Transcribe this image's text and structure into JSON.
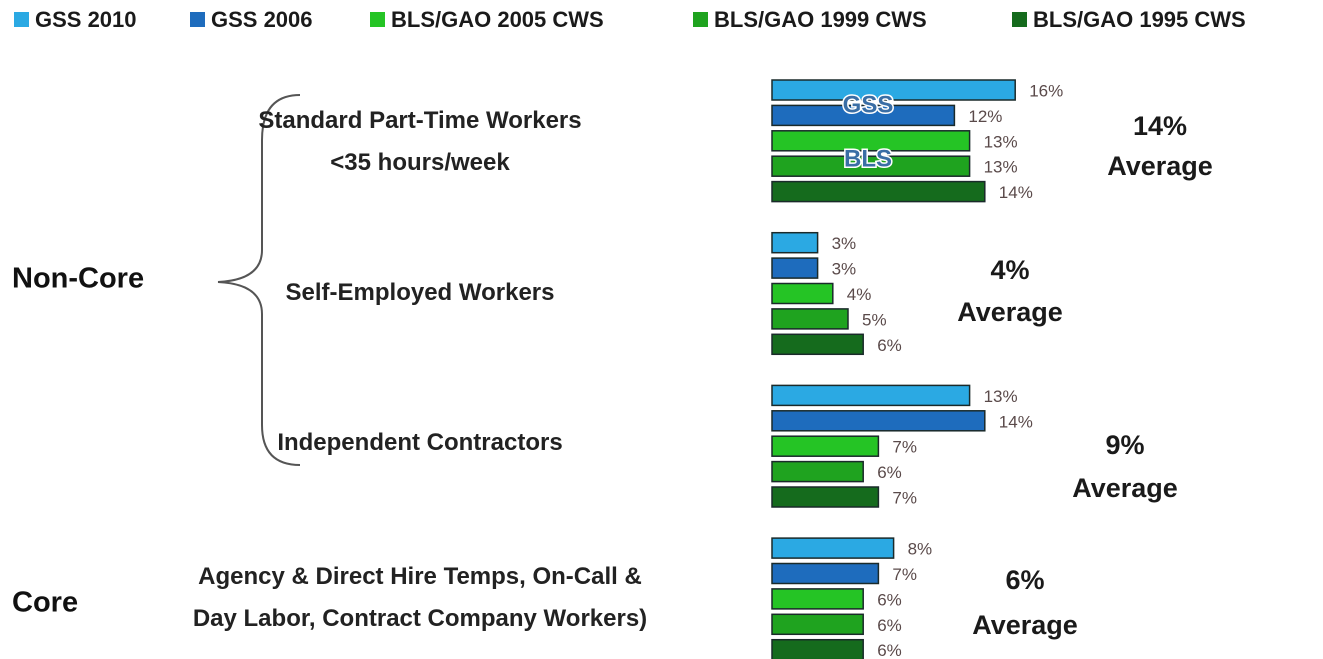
{
  "chart_data": {
    "type": "bar",
    "orientation": "horizontal",
    "categories": [
      "Standard Part-Time Workers\n<35 hours/week",
      "Self-Employed Workers",
      "Independent Contractors",
      "Agency & Direct Hire Temps, On-Call &\nDay Labor, Contract Company Workers)"
    ],
    "series": [
      {
        "name": "GSS 2010",
        "color": "#2ba9e3",
        "values": [
          16,
          3,
          13,
          8
        ],
        "value_labels": [
          "16%",
          "3%",
          "13%",
          "8%"
        ]
      },
      {
        "name": "GSS 2006",
        "color": "#1e6cbd",
        "values": [
          12,
          3,
          14,
          7
        ],
        "value_labels": [
          "12%",
          "3%",
          "14%",
          "7%"
        ]
      },
      {
        "name": "BLS/GAO 2005 CWS",
        "color": "#25c425",
        "values": [
          13,
          4,
          7,
          6
        ],
        "value_labels": [
          "13%",
          "4%",
          "7%",
          "6%"
        ]
      },
      {
        "name": "BLS/GAO 1999 CWS",
        "color": "#1fa31f",
        "values": [
          13,
          5,
          6,
          6
        ],
        "value_labels": [
          "13%",
          "5%",
          "6%",
          "6%"
        ]
      },
      {
        "name": "BLS/GAO 1995 CWS",
        "color": "#156b1d",
        "values": [
          14,
          6,
          7,
          6
        ],
        "value_labels": [
          "14%",
          "6%",
          "7%",
          "6%"
        ]
      }
    ],
    "averages": [
      "14%",
      "4%",
      "9%",
      "6%"
    ],
    "average_label": "Average",
    "bar_tags": [
      "GSS",
      "BLS"
    ],
    "groups": [
      "Non-Core",
      "Core"
    ],
    "legend": "top"
  }
}
